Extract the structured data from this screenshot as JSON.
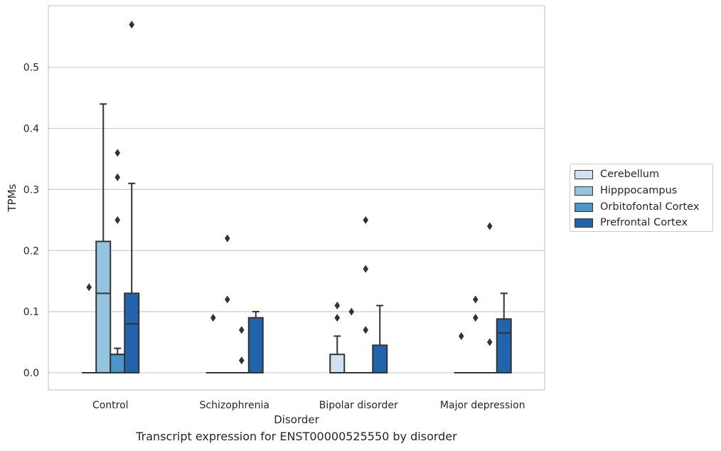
{
  "chart_data": {
    "type": "box",
    "title": "",
    "xlabel": "Disorder",
    "ylabel": "TPMs",
    "ylim": [
      -0.028,
      0.601
    ],
    "yticks": [
      "0.0",
      "0.1",
      "0.2",
      "0.3",
      "0.4",
      "0.5"
    ],
    "grid": true,
    "legend_position": "right",
    "categories": [
      "Control",
      "Schizophrenia",
      "Bipolar disorder",
      "Major depression"
    ],
    "series": [
      {
        "name": "Cerebellum",
        "color": "#d0e1f2",
        "boxes": [
          {
            "q1": 0.0,
            "median": 0.0,
            "q3": 0.0,
            "whislo": 0.0,
            "whishi": 0.0,
            "fliers": [
              0.14
            ]
          },
          {
            "q1": 0.0,
            "median": 0.0,
            "q3": 0.0,
            "whislo": 0.0,
            "whishi": 0.0,
            "fliers": [
              0.09
            ]
          },
          {
            "q1": 0.0,
            "median": 0.0,
            "q3": 0.03,
            "whislo": 0.0,
            "whishi": 0.06,
            "fliers": [
              0.09,
              0.11
            ]
          },
          {
            "q1": 0.0,
            "median": 0.0,
            "q3": 0.0,
            "whislo": 0.0,
            "whishi": 0.0,
            "fliers": [
              0.06
            ]
          }
        ]
      },
      {
        "name": "Hipppocampus",
        "color": "#94c4df",
        "boxes": [
          {
            "q1": 0.0,
            "median": 0.13,
            "q3": 0.215,
            "whislo": 0.0,
            "whishi": 0.44,
            "fliers": []
          },
          {
            "q1": 0.0,
            "median": 0.0,
            "q3": 0.0,
            "whislo": 0.0,
            "whishi": 0.0,
            "fliers": [
              0.12,
              0.22
            ]
          },
          {
            "q1": 0.0,
            "median": 0.0,
            "q3": 0.0,
            "whislo": 0.0,
            "whishi": 0.0,
            "fliers": [
              0.1
            ]
          },
          {
            "q1": 0.0,
            "median": 0.0,
            "q3": 0.0,
            "whislo": 0.0,
            "whishi": 0.0,
            "fliers": [
              0.09,
              0.12
            ]
          }
        ]
      },
      {
        "name": "Orbitofontal Cortex",
        "color": "#4a98c9",
        "boxes": [
          {
            "q1": 0.0,
            "median": 0.03,
            "q3": 0.03,
            "whislo": 0.0,
            "whishi": 0.04,
            "fliers": [
              0.25,
              0.32,
              0.36
            ]
          },
          {
            "q1": 0.0,
            "median": 0.0,
            "q3": 0.0,
            "whislo": 0.0,
            "whishi": 0.0,
            "fliers": [
              0.02,
              0.07
            ]
          },
          {
            "q1": 0.0,
            "median": 0.0,
            "q3": 0.0,
            "whislo": 0.0,
            "whishi": 0.0,
            "fliers": [
              0.07,
              0.17,
              0.25
            ]
          },
          {
            "q1": 0.0,
            "median": 0.0,
            "q3": 0.0,
            "whislo": 0.0,
            "whishi": 0.0,
            "fliers": [
              0.05,
              0.24
            ]
          }
        ]
      },
      {
        "name": "Prefrontal Cortex",
        "color": "#2164ab",
        "boxes": [
          {
            "q1": 0.0,
            "median": 0.08,
            "q3": 0.13,
            "whislo": 0.0,
            "whishi": 0.31,
            "fliers": [
              0.57
            ]
          },
          {
            "q1": 0.0,
            "median": 0.0,
            "q3": 0.09,
            "whislo": 0.0,
            "whishi": 0.1,
            "fliers": []
          },
          {
            "q1": 0.0,
            "median": 0.0,
            "q3": 0.045,
            "whislo": 0.0,
            "whishi": 0.11,
            "fliers": []
          },
          {
            "q1": 0.0,
            "median": 0.065,
            "q3": 0.088,
            "whislo": 0.0,
            "whishi": 0.13,
            "fliers": []
          }
        ]
      }
    ],
    "caption": "Transcript expression for ENST00000525550 by disorder"
  }
}
